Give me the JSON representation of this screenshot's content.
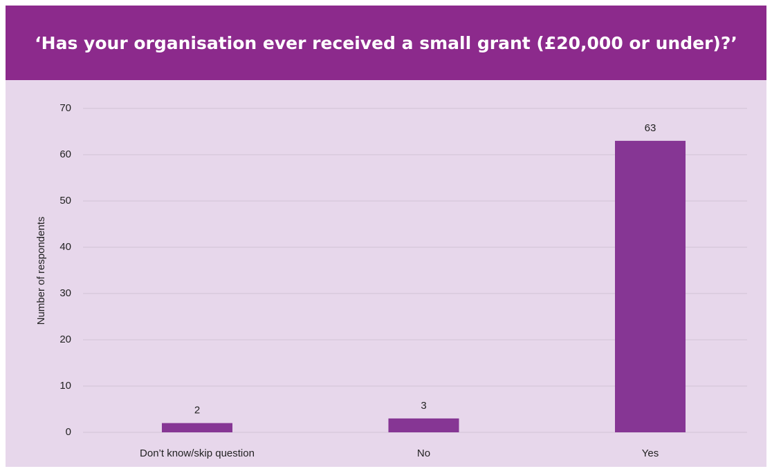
{
  "chart_data": {
    "type": "bar",
    "title": "‘Has your organisation ever received a small grant (£20,000 or under)?’",
    "y_label": "Number of respondents",
    "categories": [
      "Don’t know/skip question",
      "No",
      "Yes"
    ],
    "values": [
      2,
      3,
      63
    ],
    "color": "#863694",
    "ylim": [
      0,
      70
    ],
    "yticks": [
      0,
      10,
      20,
      30,
      40,
      50,
      60,
      70
    ],
    "grid": true
  }
}
